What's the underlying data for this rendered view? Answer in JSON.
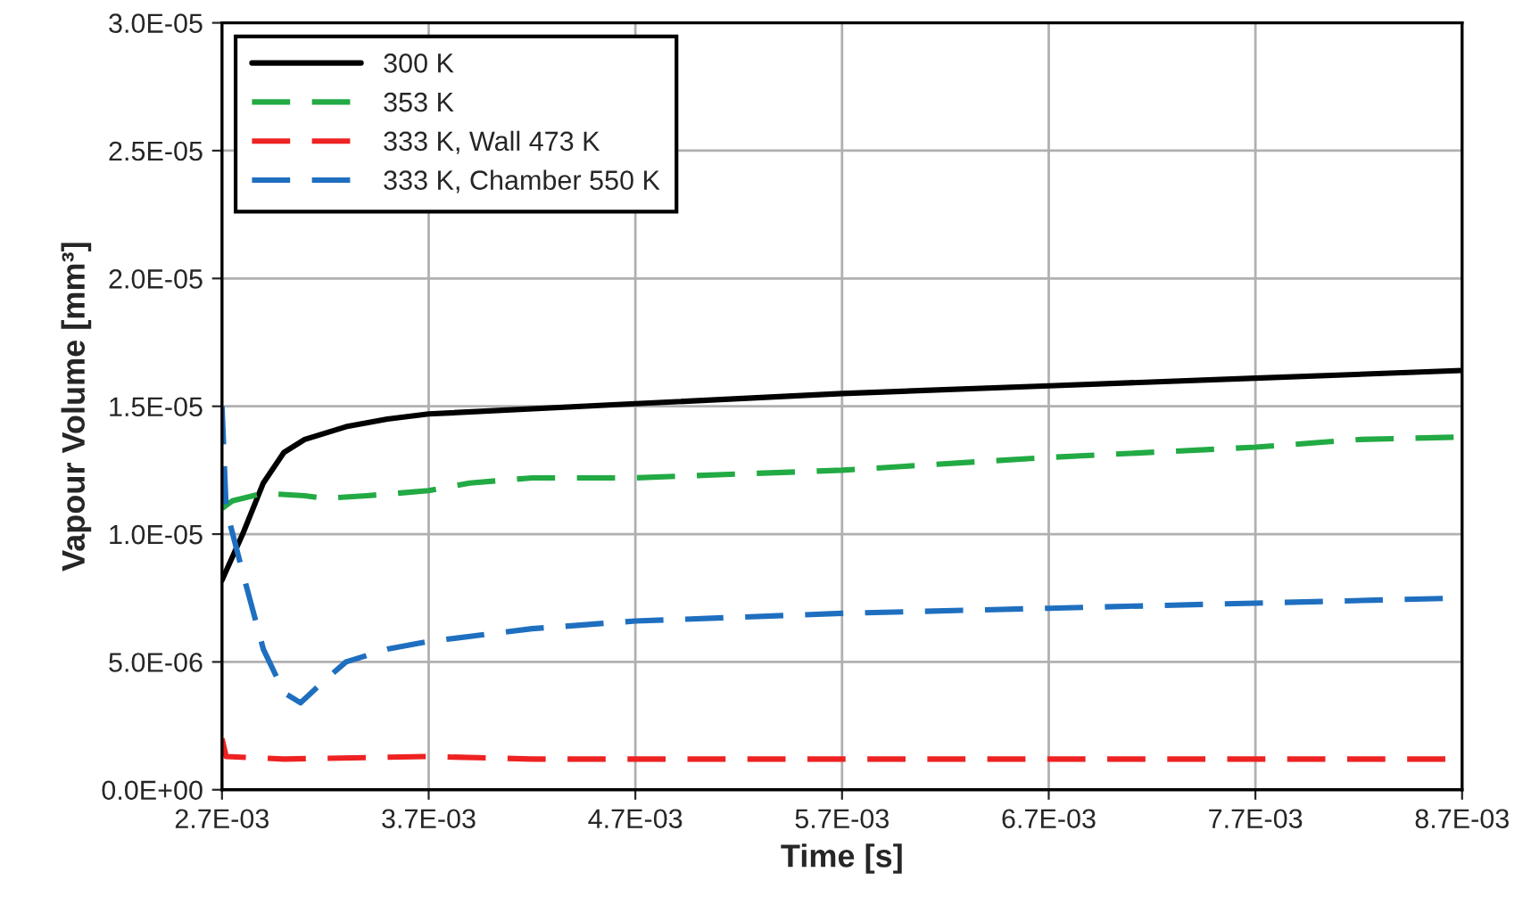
{
  "chart_data": {
    "type": "line",
    "xlabel": "Time [s]",
    "ylabel": "Vapour Volume [mm³]",
    "xlim": [
      0.0027,
      0.0087
    ],
    "xticks": [
      {
        "value": 0.0027,
        "label": "2.7E-03"
      },
      {
        "value": 0.0037,
        "label": "3.7E-03"
      },
      {
        "value": 0.0047,
        "label": "4.7E-03"
      },
      {
        "value": 0.0057,
        "label": "5.7E-03"
      },
      {
        "value": 0.0067,
        "label": "6.7E-03"
      },
      {
        "value": 0.0077,
        "label": "7.7E-03"
      },
      {
        "value": 0.0087,
        "label": "8.7E-03"
      }
    ],
    "ylim": [
      0,
      3e-05
    ],
    "yticks": [
      {
        "value": 0,
        "label": "0.0E+00"
      },
      {
        "value": 5e-06,
        "label": "5.0E-06"
      },
      {
        "value": 1e-05,
        "label": "1.0E-05"
      },
      {
        "value": 1.5e-05,
        "label": "1.5E-05"
      },
      {
        "value": 2e-05,
        "label": "2.0E-05"
      },
      {
        "value": 2.5e-05,
        "label": "2.5E-05"
      },
      {
        "value": 3e-05,
        "label": "3.0E-05"
      }
    ],
    "grid": true,
    "legend": "top left",
    "series": [
      {
        "name": "300 K",
        "color": "#000000",
        "line_style": "solid",
        "x": [
          0.0027,
          0.0028,
          0.0029,
          0.003,
          0.0031,
          0.0033,
          0.0035,
          0.0037,
          0.0047,
          0.0057,
          0.0067,
          0.0077,
          0.0087
        ],
        "values": [
          8.2e-06,
          1e-05,
          1.2e-05,
          1.32e-05,
          1.37e-05,
          1.42e-05,
          1.45e-05,
          1.47e-05,
          1.51e-05,
          1.55e-05,
          1.58e-05,
          1.61e-05,
          1.64e-05
        ]
      },
      {
        "name": "353 K",
        "color": "#22aa44",
        "line_style": "dashed",
        "x": [
          0.0027,
          0.00275,
          0.0029,
          0.0031,
          0.0032,
          0.0034,
          0.0037,
          0.0039,
          0.0042,
          0.0047,
          0.0057,
          0.0067,
          0.0077,
          0.0082,
          0.0087
        ],
        "values": [
          1.1e-05,
          1.13e-05,
          1.16e-05,
          1.15e-05,
          1.14e-05,
          1.15e-05,
          1.17e-05,
          1.2e-05,
          1.22e-05,
          1.22e-05,
          1.25e-05,
          1.3e-05,
          1.34e-05,
          1.37e-05,
          1.38e-05
        ]
      },
      {
        "name": "333 K, Wall 473 K",
        "color": "#ee2222",
        "line_style": "dashed",
        "x": [
          0.0027,
          0.00272,
          0.003,
          0.0037,
          0.0042,
          0.0087
        ],
        "values": [
          2e-06,
          1.3e-06,
          1.2e-06,
          1.3e-06,
          1.2e-06,
          1.2e-06
        ]
      },
      {
        "name": "333 K, Chamber 550 K",
        "color": "#1f6fc0",
        "line_style": "dashed",
        "x": [
          0.0027,
          0.00272,
          0.0028,
          0.0029,
          0.003,
          0.00308,
          0.0032,
          0.0033,
          0.0035,
          0.0037,
          0.0042,
          0.0047,
          0.0057,
          0.0067,
          0.0077,
          0.0087
        ],
        "values": [
          1.5e-05,
          1.1e-05,
          8.5e-06,
          5.5e-06,
          3.8e-06,
          3.4e-06,
          4.3e-06,
          5e-06,
          5.5e-06,
          5.8e-06,
          6.3e-06,
          6.6e-06,
          6.9e-06,
          7.1e-06,
          7.3e-06,
          7.5e-06
        ]
      }
    ]
  }
}
